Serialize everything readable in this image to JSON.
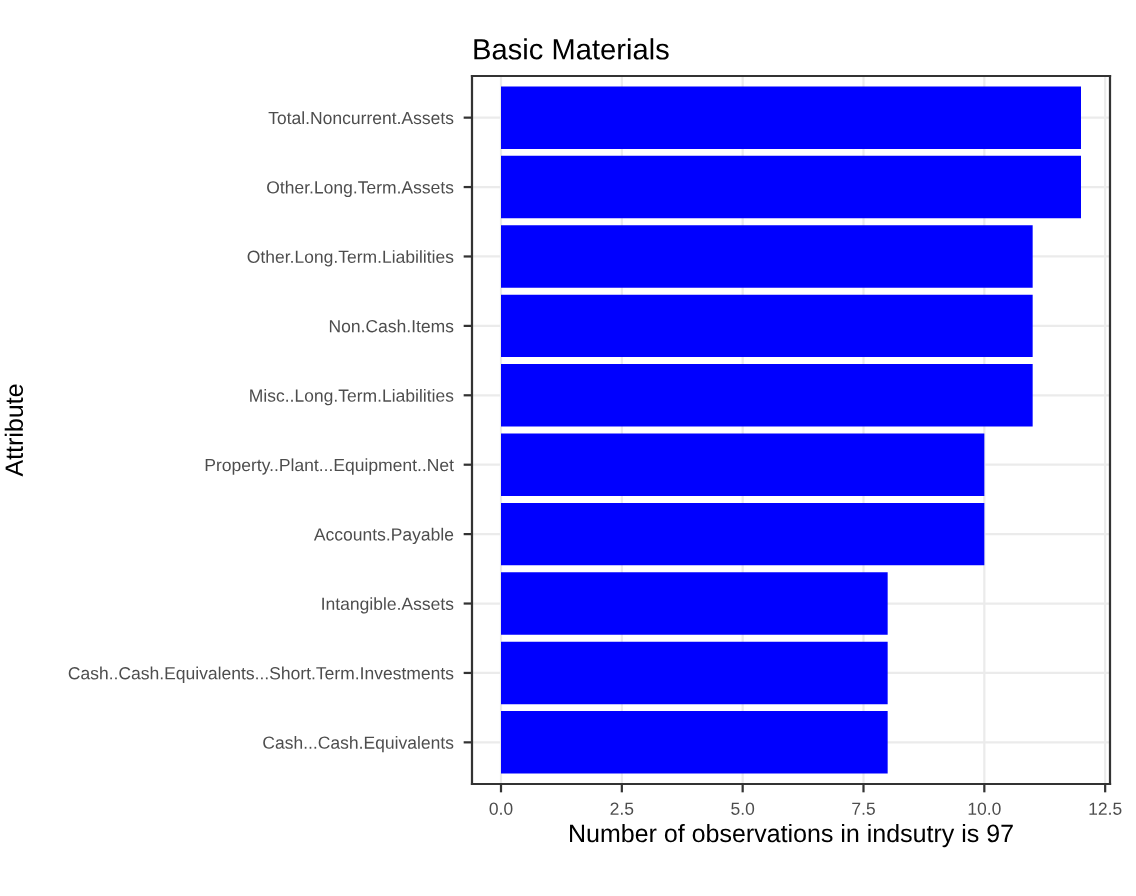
{
  "chart_data": {
    "type": "bar",
    "orientation": "horizontal",
    "title": "Basic Materials",
    "xlabel": "Number of observations in indsutry is 97",
    "ylabel": "Attribute",
    "categories": [
      "Total.Noncurrent.Assets",
      "Other.Long.Term.Assets",
      "Other.Long.Term.Liabilities",
      "Non.Cash.Items",
      "Misc..Long.Term.Liabilities",
      "Property..Plant...Equipment..Net",
      "Accounts.Payable",
      "Intangible.Assets",
      "Cash..Cash.Equivalents...Short.Term.Investments",
      "Cash...Cash.Equivalents"
    ],
    "values": [
      12,
      12,
      11,
      11,
      11,
      10,
      10,
      8,
      8,
      8
    ],
    "color": "#0000ff",
    "xlim": [
      -0.6,
      12.6
    ],
    "xticks": [
      {
        "value": 0,
        "label": "0.0"
      },
      {
        "value": 2.5,
        "label": "2.5"
      },
      {
        "value": 5,
        "label": "5.0"
      },
      {
        "value": 7.5,
        "label": "7.5"
      },
      {
        "value": 10,
        "label": "10.0"
      },
      {
        "value": 12.5,
        "label": "12.5"
      }
    ],
    "grid": true,
    "legend": false
  }
}
